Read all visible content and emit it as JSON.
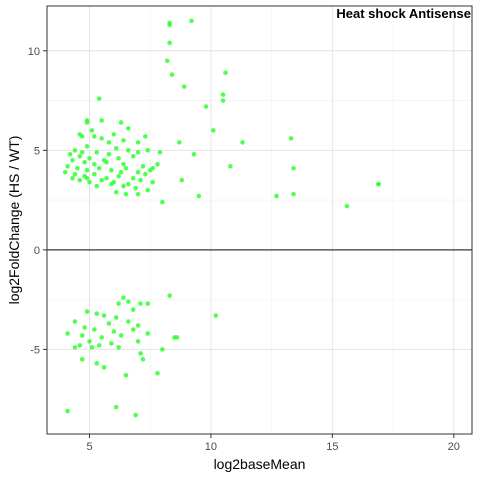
{
  "chart_data": {
    "type": "scatter",
    "title": "Heat shock Antisense",
    "xlabel": "log2baseMean",
    "ylabel": "log2FoldChange (HS / WT)",
    "xlim": [
      3.25,
      20.75
    ],
    "ylim": [
      -9.25,
      12.25
    ],
    "x_ticks": [
      5,
      10,
      15,
      20
    ],
    "y_ticks": [
      -5,
      0,
      5,
      10
    ],
    "x_tick_labels": [
      "5",
      "10",
      "15",
      "20"
    ],
    "y_tick_labels": [
      "-5",
      "0",
      "5",
      "10"
    ],
    "grid": true,
    "reference_line_y": 0,
    "point_color": "#33ff33",
    "points": [
      [
        8.3,
        11.4
      ],
      [
        8.3,
        11.3
      ],
      [
        9.2,
        11.5
      ],
      [
        8.3,
        10.4
      ],
      [
        8.2,
        9.5
      ],
      [
        8.4,
        8.8
      ],
      [
        8.9,
        8.2
      ],
      [
        10.6,
        8.9
      ],
      [
        10.5,
        7.8
      ],
      [
        10.5,
        7.5
      ],
      [
        9.8,
        7.2
      ],
      [
        10.1,
        6.0
      ],
      [
        11.3,
        5.4
      ],
      [
        8.7,
        5.4
      ],
      [
        13.3,
        5.6
      ],
      [
        9.3,
        4.8
      ],
      [
        10.8,
        4.2
      ],
      [
        13.4,
        4.1
      ],
      [
        8.8,
        3.5
      ],
      [
        9.5,
        2.7
      ],
      [
        12.7,
        2.7
      ],
      [
        13.4,
        2.8
      ],
      [
        16.9,
        3.3
      ],
      [
        16.9,
        3.3
      ],
      [
        15.6,
        2.2
      ],
      [
        5.4,
        7.6
      ],
      [
        4.9,
        6.5
      ],
      [
        4.9,
        6.4
      ],
      [
        5.5,
        6.5
      ],
      [
        6.3,
        6.4
      ],
      [
        6.6,
        6.1
      ],
      [
        7.3,
        5.7
      ],
      [
        5.1,
        6.0
      ],
      [
        4.6,
        5.8
      ],
      [
        4.7,
        5.7
      ],
      [
        6.0,
        5.8
      ],
      [
        5.2,
        5.7
      ],
      [
        5.5,
        5.6
      ],
      [
        6.4,
        5.5
      ],
      [
        7.0,
        5.4
      ],
      [
        5.8,
        5.4
      ],
      [
        4.9,
        5.2
      ],
      [
        4.4,
        5.0
      ],
      [
        5.3,
        4.9
      ],
      [
        6.1,
        5.1
      ],
      [
        6.6,
        5.0
      ],
      [
        7.0,
        4.9
      ],
      [
        7.4,
        5.0
      ],
      [
        7.9,
        4.9
      ],
      [
        4.2,
        4.8
      ],
      [
        4.6,
        4.7
      ],
      [
        5.0,
        4.6
      ],
      [
        5.6,
        4.5
      ],
      [
        6.2,
        4.6
      ],
      [
        6.8,
        4.7
      ],
      [
        4.3,
        4.5
      ],
      [
        4.8,
        4.4
      ],
      [
        5.2,
        4.3
      ],
      [
        5.7,
        4.4
      ],
      [
        6.4,
        4.3
      ],
      [
        7.2,
        4.2
      ],
      [
        7.6,
        4.1
      ],
      [
        7.8,
        4.3
      ],
      [
        4.1,
        4.2
      ],
      [
        4.5,
        4.1
      ],
      [
        4.9,
        4.0
      ],
      [
        5.4,
        4.1
      ],
      [
        5.9,
        4.0
      ],
      [
        6.5,
        4.1
      ],
      [
        7.0,
        3.9
      ],
      [
        7.5,
        4.0
      ],
      [
        4.0,
        3.9
      ],
      [
        4.4,
        3.8
      ],
      [
        4.8,
        3.7
      ],
      [
        5.2,
        3.8
      ],
      [
        5.7,
        3.6
      ],
      [
        6.2,
        3.7
      ],
      [
        6.8,
        3.6
      ],
      [
        7.3,
        3.8
      ],
      [
        4.6,
        3.5
      ],
      [
        5.0,
        3.4
      ],
      [
        5.5,
        3.5
      ],
      [
        6.0,
        3.4
      ],
      [
        6.6,
        3.3
      ],
      [
        7.1,
        3.5
      ],
      [
        7.6,
        3.4
      ],
      [
        4.3,
        3.6
      ],
      [
        5.3,
        3.2
      ],
      [
        5.9,
        3.3
      ],
      [
        6.4,
        3.2
      ],
      [
        6.9,
        3.1
      ],
      [
        7.4,
        3.0
      ],
      [
        6.1,
        2.9
      ],
      [
        6.5,
        2.8
      ],
      [
        7.0,
        2.8
      ],
      [
        8.0,
        2.4
      ],
      [
        4.7,
        4.9
      ],
      [
        5.8,
        4.8
      ],
      [
        4.9,
        3.6
      ],
      [
        6.3,
        3.9
      ],
      [
        6.4,
        -2.4
      ],
      [
        6.6,
        -2.6
      ],
      [
        6.2,
        -2.7
      ],
      [
        7.1,
        -2.7
      ],
      [
        7.4,
        -2.7
      ],
      [
        8.3,
        -2.3
      ],
      [
        6.8,
        -3.0
      ],
      [
        5.3,
        -3.2
      ],
      [
        4.9,
        -3.1
      ],
      [
        5.6,
        -3.3
      ],
      [
        6.1,
        -3.4
      ],
      [
        10.2,
        -3.3
      ],
      [
        5.8,
        -3.7
      ],
      [
        4.4,
        -3.6
      ],
      [
        6.6,
        -3.6
      ],
      [
        7.0,
        -3.8
      ],
      [
        4.8,
        -3.9
      ],
      [
        5.2,
        -4.0
      ],
      [
        6.0,
        -4.1
      ],
      [
        6.8,
        -4.0
      ],
      [
        7.4,
        -4.2
      ],
      [
        4.1,
        -4.2
      ],
      [
        4.7,
        -4.3
      ],
      [
        5.5,
        -4.4
      ],
      [
        6.3,
        -4.3
      ],
      [
        8.5,
        -4.4
      ],
      [
        8.6,
        -4.4
      ],
      [
        5.0,
        -4.6
      ],
      [
        5.9,
        -4.7
      ],
      [
        7.0,
        -4.6
      ],
      [
        4.6,
        -4.8
      ],
      [
        4.4,
        -4.9
      ],
      [
        5.1,
        -4.9
      ],
      [
        5.4,
        -4.8
      ],
      [
        6.2,
        -4.9
      ],
      [
        8.0,
        -5.0
      ],
      [
        7.1,
        -5.2
      ],
      [
        4.7,
        -5.5
      ],
      [
        5.3,
        -5.7
      ],
      [
        5.6,
        -5.9
      ],
      [
        7.2,
        -5.5
      ],
      [
        6.5,
        -6.3
      ],
      [
        7.8,
        -6.2
      ],
      [
        6.1,
        -7.9
      ],
      [
        6.9,
        -8.3
      ],
      [
        4.1,
        -8.1
      ]
    ]
  }
}
